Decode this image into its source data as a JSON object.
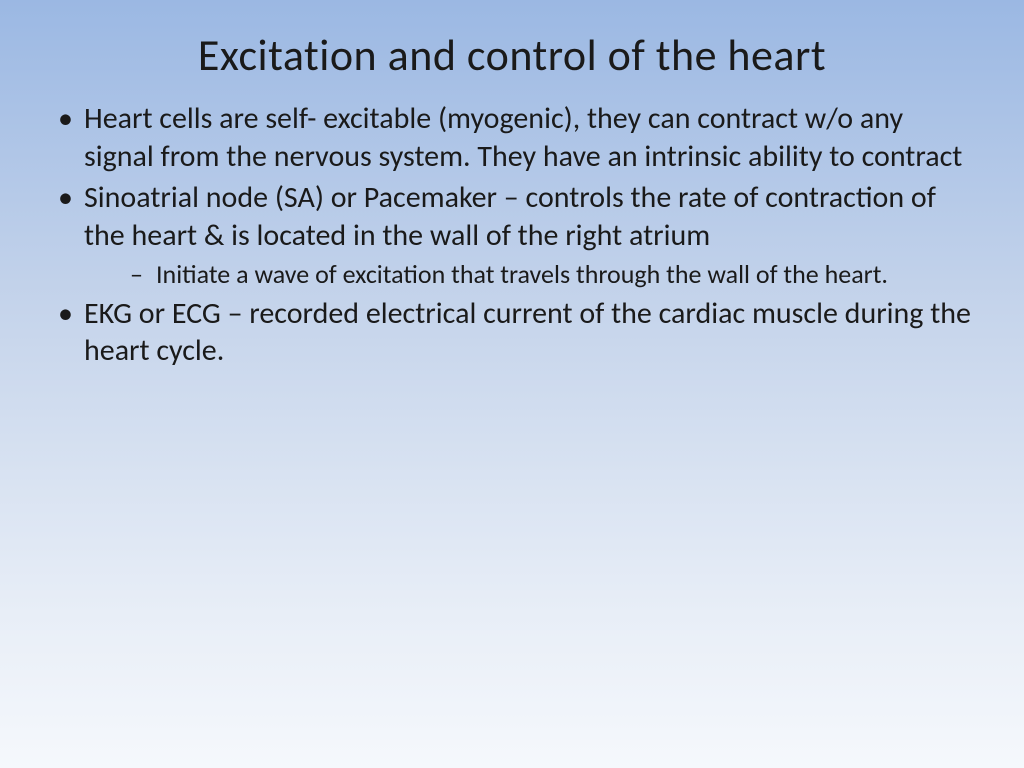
{
  "slide": {
    "title": "Excitation and control of the heart",
    "background_gradient": {
      "top": "#9bb8e3",
      "mid1": "#c5d4eb",
      "mid2": "#e8eef7",
      "bottom": "#f5f8fc"
    },
    "title_style": {
      "fontsize": 44,
      "weight": 400,
      "color": "#1a1a1a",
      "align": "center"
    },
    "body_style": {
      "fontsize": 30,
      "sub_fontsize": 26,
      "color": "#1a1a1a",
      "bullet_char": "•",
      "sub_bullet_char": "–"
    },
    "bullets": [
      {
        "text": "Heart cells are self- excitable (myogenic), they can contract w/o any signal from the nervous system. They have an intrinsic ability to contract",
        "sub": []
      },
      {
        "text": "Sinoatrial node (SA) or Pacemaker – controls the rate of contraction of the heart & is located in the wall of the right atrium",
        "sub": [
          "Initiate a wave of excitation that travels through the wall of the heart."
        ]
      },
      {
        "text": "EKG or ECG – recorded electrical current of the cardiac muscle during the heart cycle.",
        "sub": []
      }
    ]
  }
}
